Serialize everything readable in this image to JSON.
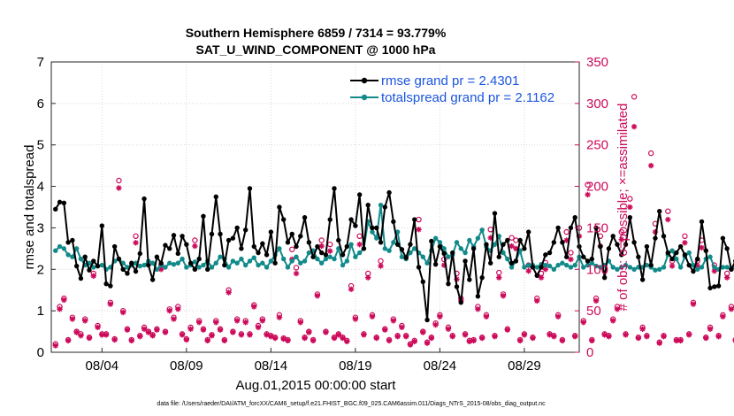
{
  "chart_data": {
    "type": "line",
    "title": "Southern Hemisphere 6859 / 7314 = 93.779%",
    "subtitle": "SAT_U_WIND_COMPONENT @ 1000 hPa",
    "xlabel": "Aug.01,2015 00:00:00 start",
    "ylabel_left": "rmse and totalspread",
    "ylabel_right": "# of obs: o=possible; ×=assimilated",
    "ylim_left": [
      0,
      7
    ],
    "ylim_right": [
      0,
      350
    ],
    "xlim_days": [
      1.0,
      32.25
    ],
    "yticks_left": [
      "0",
      "1",
      "2",
      "3",
      "4",
      "5",
      "6",
      "7"
    ],
    "yticks_right": [
      "0",
      "50",
      "100",
      "150",
      "200",
      "250",
      "300",
      "350"
    ],
    "xticks": [
      {
        "day": 4,
        "label": "08/04"
      },
      {
        "day": 9,
        "label": "08/09"
      },
      {
        "day": 14,
        "label": "08/14"
      },
      {
        "day": 19,
        "label": "08/19"
      },
      {
        "day": 24,
        "label": "08/24"
      },
      {
        "day": 29,
        "label": "08/29"
      }
    ],
    "start_day": 1.25,
    "step_days": 0.25,
    "grid": true,
    "legend_position": "top-right",
    "series": [
      {
        "name": "rmse grand pr = 2.4301",
        "color": "#000000",
        "values": [
          3.45,
          3.62,
          3.6,
          2.65,
          2.7,
          2.08,
          1.78,
          2.3,
          1.98,
          2.2,
          2.08,
          3.05,
          1.65,
          1.6,
          2.55,
          2.25,
          2.0,
          1.9,
          2.15,
          1.95,
          2.38,
          3.7,
          2.1,
          1.75,
          2.3,
          2.15,
          2.58,
          2.5,
          2.82,
          2.38,
          2.8,
          2.6,
          2.15,
          2.0,
          2.25,
          3.28,
          2.0,
          2.85,
          3.75,
          2.85,
          2.1,
          2.7,
          2.75,
          3.0,
          2.5,
          2.95,
          3.95,
          2.55,
          2.4,
          2.62,
          2.35,
          2.9,
          2.15,
          3.5,
          3.2,
          2.65,
          2.85,
          2.55,
          2.8,
          3.25,
          2.65,
          2.3,
          2.55,
          2.4,
          2.35,
          3.2,
          3.95,
          2.7,
          2.35,
          2.55,
          3.2,
          3.05,
          3.8,
          2.5,
          3.55,
          3.0,
          3.0,
          2.65,
          3.5,
          3.85,
          3.15,
          2.6,
          2.48,
          2.28,
          2.6,
          3.2,
          2.05,
          1.7,
          0.78,
          2.68,
          2.12,
          2.55,
          2.38,
          1.65,
          2.4,
          1.58,
          1.2,
          2.2,
          1.75,
          2.5,
          1.35,
          1.8,
          2.6,
          2.15,
          3.35,
          2.3,
          2.6,
          2.7,
          2.15,
          2.2,
          2.7,
          2.5,
          2.9,
          2.05,
          1.85,
          2.05,
          2.35,
          2.4,
          2.65,
          3.0,
          2.65,
          2.3,
          3.0,
          3.25,
          2.55,
          2.3,
          2.2,
          2.25,
          3.0,
          2.55,
          1.8,
          2.5,
          2.8,
          2.6,
          2.35,
          2.6,
          3.25,
          2.65,
          2.3,
          1.75,
          2.55,
          2.1,
          2.75,
          3.4,
          2.8,
          2.4,
          2.25,
          2.4,
          2.55,
          2.35,
          2.1,
          1.95,
          2.25,
          3.15,
          2.45,
          1.55,
          1.58,
          1.6,
          2.75,
          2.5,
          2.0,
          2.2,
          2.25
        ]
      },
      {
        "name": "totalspread grand pr = 2.1162",
        "color": "#128a8a",
        "values": [
          2.45,
          2.55,
          2.5,
          2.35,
          2.3,
          2.5,
          2.25,
          2.1,
          2.15,
          2.05,
          2.08,
          2.1,
          2.0,
          2.05,
          2.2,
          2.25,
          2.15,
          2.05,
          2.1,
          2.15,
          2.08,
          2.1,
          2.2,
          2.15,
          2.0,
          2.1,
          2.05,
          2.15,
          2.12,
          2.15,
          2.25,
          2.05,
          2.1,
          2.18,
          2.05,
          2.1,
          2.2,
          2.05,
          2.15,
          2.3,
          2.25,
          2.05,
          2.2,
          2.15,
          2.25,
          2.1,
          2.2,
          2.28,
          2.1,
          2.15,
          2.05,
          2.2,
          2.35,
          2.5,
          2.25,
          2.05,
          2.2,
          2.3,
          2.15,
          2.2,
          2.4,
          2.45,
          2.25,
          2.15,
          2.25,
          2.3,
          2.25,
          2.5,
          2.1,
          2.2,
          2.6,
          2.3,
          2.4,
          2.5,
          3.15,
          2.9,
          2.75,
          3.55,
          2.5,
          2.45,
          2.65,
          2.9,
          2.3,
          2.25,
          2.4,
          2.5,
          2.4,
          2.3,
          2.15,
          2.45,
          2.75,
          2.65,
          2.5,
          2.3,
          2.35,
          2.65,
          2.5,
          2.4,
          2.7,
          2.55,
          2.75,
          2.95,
          2.55,
          2.45,
          2.6,
          2.8,
          2.4,
          2.25,
          2.05,
          2.2,
          2.45,
          2.05,
          2.1,
          2.1,
          2.05,
          2.12,
          2.1,
          2.08,
          2.0,
          2.1,
          2.15,
          2.1,
          2.05,
          2.1,
          2.3,
          2.05,
          2.1,
          2.15,
          2.08,
          2.05,
          2.1,
          2.2,
          2.05,
          2.0,
          2.05,
          2.1,
          2.05,
          2.0,
          2.05,
          2.05,
          2.1,
          2.05,
          1.98,
          2.0,
          2.05,
          2.35,
          2.45,
          2.25,
          2.05,
          2.3,
          2.4,
          2.1,
          2.0,
          2.05,
          2.25,
          2.3,
          2.05,
          2.0,
          2.05,
          2.05,
          2.0,
          2.05,
          2.2,
          2.4,
          2.5
        ]
      }
    ],
    "obs_possible": [
      10,
      55,
      65,
      15,
      42,
      25,
      22,
      40,
      18,
      95,
      32,
      22,
      22,
      60,
      16,
      207,
      50,
      28,
      15,
      140,
      20,
      30,
      25,
      21,
      28,
      105,
      25,
      52,
      42,
      55,
      22,
      16,
      30,
      135,
      38,
      28,
      15,
      21,
      38,
      28,
      15,
      75,
      25,
      40,
      22,
      38,
      22,
      57,
      32,
      40,
      22,
      20,
      18,
      45,
      17,
      15,
      124,
      102,
      38,
      18,
      25,
      15,
      70,
      135,
      25,
      130,
      18,
      22,
      18,
      14,
      80,
      42,
      140,
      22,
      95,
      45,
      18,
      110,
      28,
      15,
      40,
      20,
      32,
      20,
      10,
      14,
      160,
      25,
      12,
      18,
      35,
      45,
      112,
      30,
      20,
      95,
      65,
      22,
      14,
      15,
      55,
      18,
      45,
      148,
      20,
      96,
      70,
      28,
      138,
      135,
      15,
      22,
      105,
      18,
      65,
      95,
      108,
      22,
      20,
      45,
      15,
      145,
      120,
      20,
      150,
      38,
      202,
      15,
      65,
      140,
      22,
      20,
      40,
      55,
      145,
      22,
      185,
      308,
      18,
      30,
      20,
      240,
      155,
      12,
      20,
      170,
      110,
      15,
      15,
      140,
      22,
      60,
      110,
      135,
      18,
      30,
      105,
      20,
      45,
      95,
      55,
      15,
      120,
      22,
      50,
      12,
      10
    ],
    "obs_assimilated": [
      8,
      52,
      63,
      14,
      40,
      24,
      20,
      38,
      17,
      92,
      30,
      21,
      21,
      58,
      15,
      198,
      48,
      27,
      14,
      132,
      19,
      28,
      24,
      20,
      27,
      100,
      24,
      50,
      40,
      52,
      21,
      15,
      28,
      128,
      36,
      27,
      14,
      20,
      36,
      27,
      14,
      72,
      24,
      38,
      21,
      36,
      21,
      55,
      30,
      38,
      21,
      19,
      17,
      42,
      16,
      14,
      112,
      95,
      36,
      17,
      24,
      14,
      68,
      128,
      24,
      122,
      17,
      21,
      17,
      13,
      76,
      40,
      130,
      21,
      90,
      43,
      17,
      104,
      27,
      14,
      38,
      19,
      30,
      19,
      9,
      13,
      148,
      24,
      11,
      17,
      33,
      43,
      105,
      28,
      19,
      88,
      62,
      21,
      13,
      14,
      52,
      17,
      43,
      138,
      19,
      90,
      68,
      27,
      128,
      125,
      14,
      21,
      98,
      17,
      62,
      90,
      100,
      21,
      19,
      43,
      14,
      135,
      112,
      19,
      140,
      36,
      190,
      14,
      62,
      128,
      21,
      19,
      38,
      52,
      136,
      21,
      175,
      272,
      17,
      28,
      19,
      225,
      145,
      11,
      19,
      160,
      104,
      14,
      14,
      132,
      21,
      58,
      104,
      126,
      17,
      28,
      98,
      19,
      43,
      90,
      52,
      14,
      112,
      21,
      48,
      11,
      8
    ],
    "footer": "data file: /Users/raeder/DAI/ATM_forcXX/CAM6_setup/f.e21.FHIST_BGC.f09_025.CAM6assim.011/Diags_NTrS_2015-08/obs_diag_output.nc"
  }
}
